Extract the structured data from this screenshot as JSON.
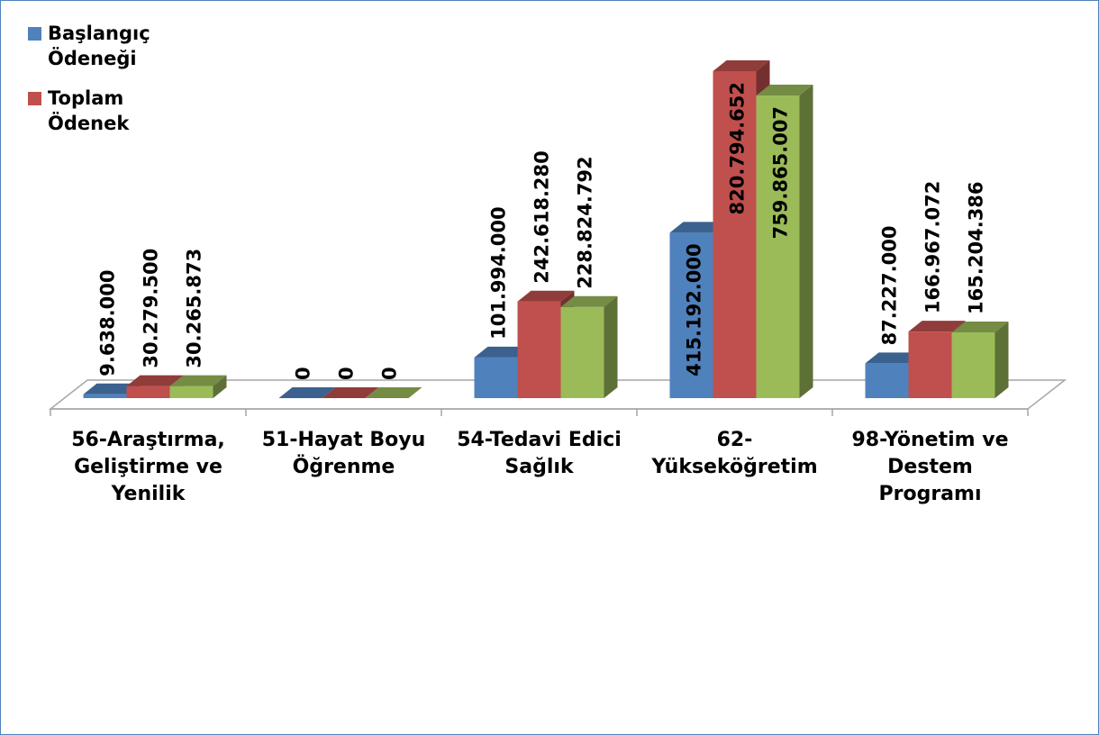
{
  "chart_data": {
    "type": "bar3d",
    "categories": [
      "56-Araştırma, Geliştirme ve Yenilik",
      "51-Hayat Boyu Öğrenme",
      "54-Tedavi Edici Sağlık",
      "62-Yükseköğretim",
      "98-Yönetim ve Destem Programı"
    ],
    "series": [
      {
        "name": "Başlangıç Ödeneği",
        "color": "#4f81bd",
        "values": [
          9638000,
          0,
          101994000,
          415192000,
          87227000
        ],
        "value_labels": [
          "9.638.000",
          "0",
          "101.994.000",
          "415.192.000",
          "87.227.000"
        ]
      },
      {
        "name": "Toplam Ödenek",
        "color": "#c0504d",
        "values": [
          30279500,
          0,
          242618280,
          820794652,
          166967072
        ],
        "value_labels": [
          "30.279.500",
          "0",
          "242.618.280",
          "820.794.652",
          "166.967.072"
        ]
      },
      {
        "color": "#9bbb59",
        "values": [
          30265873,
          0,
          228824792,
          759865007,
          165204386
        ],
        "value_labels": [
          "30.265.873",
          "0",
          "228.824.792",
          "759.865.007",
          "165.204.386"
        ]
      }
    ]
  }
}
